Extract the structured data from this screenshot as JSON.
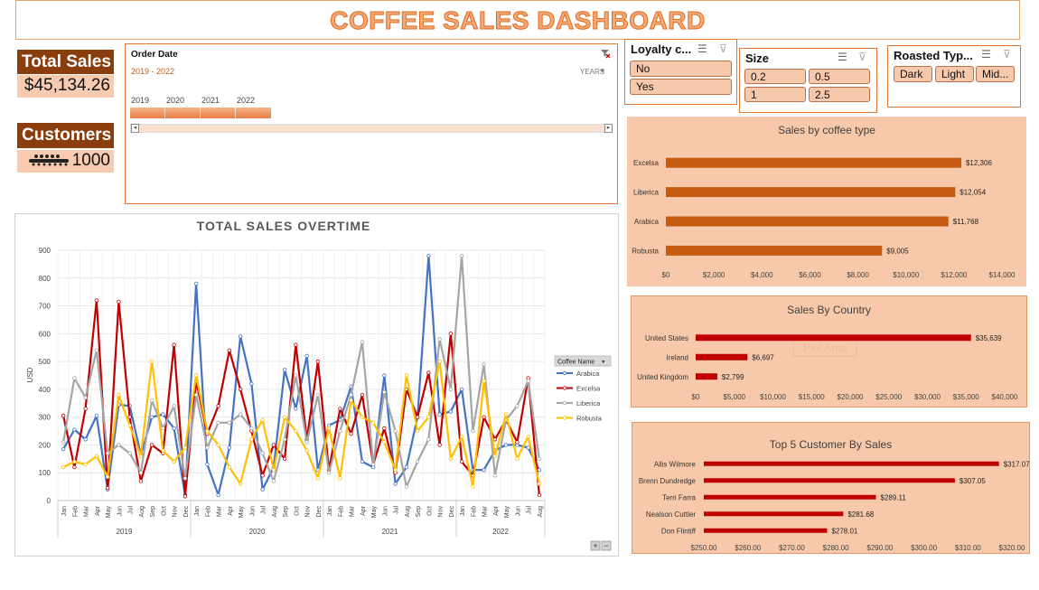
{
  "dashboard_title": "COFFEE SALES DASHBOARD",
  "kpis": {
    "total_sales_label": "Total Sales",
    "total_sales_value": "$45,134.26",
    "customers_label": "Customers",
    "customers_value": "1000"
  },
  "timeline": {
    "title": "Order Date",
    "range": "2019 - 2022",
    "unit": "YEARS",
    "years": [
      "2019",
      "2020",
      "2021",
      "2022"
    ]
  },
  "slicers": {
    "loyalty": {
      "title": "Loyalty c...",
      "options": [
        "No",
        "Yes"
      ]
    },
    "size": {
      "title": "Size",
      "options": [
        "0.2",
        "0.5",
        "1",
        "2.5"
      ]
    },
    "roast": {
      "title": "Roasted Typ...",
      "options": [
        "Dark",
        "Light",
        "Mid..."
      ]
    }
  },
  "colors": {
    "accent": "#e07a32",
    "title_fill": "#f3a978",
    "kpi_dark": "#8a3e0e",
    "kpi_light": "#f7cbb0",
    "panel_bg": "#f7c9aa",
    "bar_orange": "#c55a11",
    "bar_red": "#c00000",
    "arabica": "#4472c4",
    "excelsa": "#c00000",
    "liberica": "#a5a5a5",
    "robusta": "#ffc000"
  },
  "chart_data": [
    {
      "type": "line",
      "title": "TOTAL SALES OVERTIME",
      "ylabel": "USD",
      "ylim": [
        0,
        900
      ],
      "yticks": [
        "0",
        "100",
        "200",
        "300",
        "400",
        "500",
        "600",
        "700",
        "800",
        "900"
      ],
      "legend_title": "Coffee Name",
      "legend_position": "right",
      "x": [
        "Jan",
        "Feb",
        "Mar",
        "Apr",
        "May",
        "Jun",
        "Jul",
        "Aug",
        "Sep",
        "Oct",
        "Nov",
        "Dec",
        "Jan",
        "Feb",
        "Mar",
        "Apr",
        "May",
        "Jun",
        "Jul",
        "Aug",
        "Sep",
        "Oct",
        "Nov",
        "Dec",
        "Jan",
        "Feb",
        "Mar",
        "Apr",
        "May",
        "Jun",
        "Jul",
        "Aug",
        "Sep",
        "Oct",
        "Nov",
        "Dec",
        "Jan",
        "Feb",
        "Mar",
        "Apr",
        "May",
        "Jun",
        "Jul",
        "Aug"
      ],
      "year_groups": [
        {
          "label": "2019",
          "months": 12
        },
        {
          "label": "2020",
          "months": 12
        },
        {
          "label": "2021",
          "months": 12
        },
        {
          "label": "2022",
          "months": 8
        }
      ],
      "series": [
        {
          "name": "Arabica",
          "color": "#4472c4",
          "values": [
            185,
            255,
            220,
            305,
            40,
            345,
            340,
            165,
            300,
            310,
            260,
            20,
            780,
            130,
            20,
            190,
            590,
            420,
            40,
            120,
            470,
            330,
            520,
            110,
            270,
            290,
            410,
            140,
            120,
            450,
            60,
            120,
            300,
            880,
            310,
            320,
            400,
            110,
            110,
            180,
            200,
            200,
            190,
            110
          ]
        },
        {
          "name": "Excelsa",
          "color": "#c00000",
          "values": [
            305,
            120,
            330,
            720,
            45,
            715,
            300,
            70,
            200,
            170,
            560,
            15,
            430,
            240,
            340,
            540,
            400,
            250,
            90,
            200,
            150,
            560,
            220,
            500,
            110,
            330,
            240,
            380,
            130,
            260,
            100,
            400,
            300,
            460,
            200,
            600,
            140,
            90,
            300,
            220,
            290,
            210,
            440,
            20
          ]
        },
        {
          "name": "Liberica",
          "color": "#a5a5a5",
          "values": [
            210,
            440,
            370,
            540,
            170,
            200,
            170,
            100,
            360,
            260,
            340,
            80,
            380,
            190,
            280,
            280,
            310,
            260,
            170,
            70,
            220,
            450,
            210,
            380,
            100,
            250,
            380,
            570,
            130,
            390,
            250,
            50,
            140,
            220,
            580,
            400,
            880,
            250,
            490,
            90,
            290,
            340,
            430,
            150
          ]
        },
        {
          "name": "Robusta",
          "color": "#ffc000",
          "values": [
            120,
            140,
            130,
            160,
            85,
            380,
            270,
            160,
            500,
            180,
            140,
            190,
            450,
            250,
            200,
            120,
            60,
            220,
            290,
            110,
            300,
            250,
            180,
            80,
            260,
            80,
            360,
            300,
            280,
            210,
            110,
            450,
            250,
            300,
            500,
            150,
            230,
            50,
            430,
            160,
            310,
            150,
            230,
            60
          ]
        }
      ]
    },
    {
      "type": "bar",
      "title": "Sales by coffee type",
      "categories": [
        "Excelsa",
        "Liberica",
        "Arabica",
        "Robusta"
      ],
      "values": [
        12306,
        12054,
        11768,
        9005
      ],
      "value_labels": [
        "$12,306",
        "$12,054",
        "$11,768",
        "$9,005"
      ],
      "xlim": [
        0,
        14000
      ],
      "ticks": [
        "$0",
        "$2,000",
        "$4,000",
        "$6,000",
        "$8,000",
        "$10,000",
        "$12,000",
        "$14,000"
      ],
      "color": "#c55a11"
    },
    {
      "type": "bar",
      "title": "Sales By Country",
      "categories": [
        "United States",
        "Ireland",
        "United Kingdom"
      ],
      "values": [
        35639,
        6697,
        2799
      ],
      "value_labels": [
        "$35,639",
        "$6,697",
        "$2,799"
      ],
      "xlim": [
        0,
        40000
      ],
      "ticks": [
        "$0",
        "$5,000",
        "$10,000",
        "$15,000",
        "$20,000",
        "$25,000",
        "$30,000",
        "$35,000",
        "$40,000"
      ],
      "annotation": "Plot Area",
      "color": "#c00000"
    },
    {
      "type": "bar",
      "title": "Top 5 Customer By Sales",
      "categories": [
        "Allis Wilmore",
        "Brenn Dundredge",
        "Terri Farra",
        "Nealson Cuttler",
        "Don Flintiff"
      ],
      "values": [
        317.07,
        307.05,
        289.11,
        281.68,
        278.01
      ],
      "value_labels": [
        "$317.07",
        "$307.05",
        "$289.11",
        "$281.68",
        "$278.01"
      ],
      "xlim": [
        250,
        320
      ],
      "ticks": [
        "$250.00",
        "$260.00",
        "$270.00",
        "$280.00",
        "$290.00",
        "$300.00",
        "$310.00",
        "$320.00"
      ],
      "color": "#c00000"
    }
  ]
}
